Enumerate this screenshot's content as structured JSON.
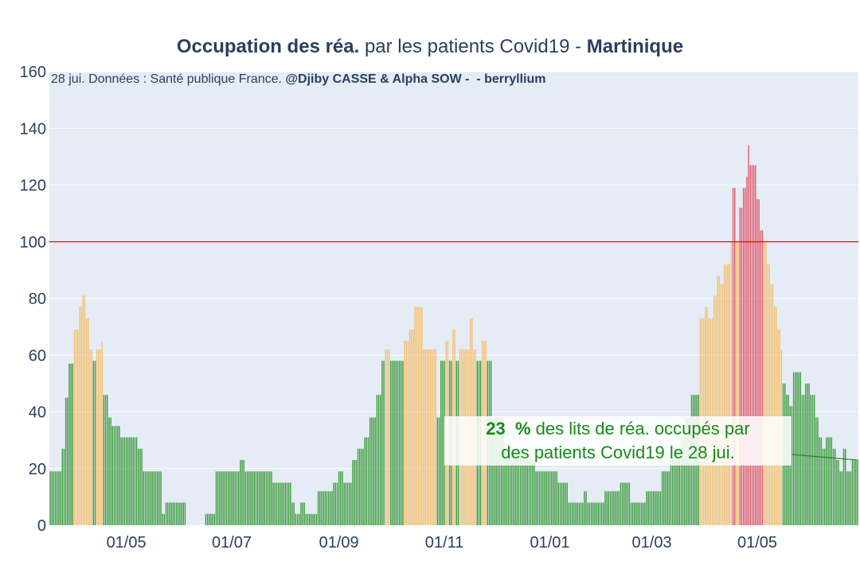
{
  "chart_data": {
    "type": "bar",
    "title": {
      "part1_bold": "Occupation des réa.",
      "part2": " par les patients Covid19 - ",
      "part3_bold": "Martinique"
    },
    "subtitle": {
      "text": "28 jui. Données : Santé publique France. ",
      "bold": "@Djiby CASSE & Alpha SOW -  - berryllium"
    },
    "ylim": [
      0,
      160
    ],
    "yticks": [
      "0",
      "20",
      "40",
      "60",
      "80",
      "100",
      "120",
      "140",
      "160"
    ],
    "xticks": [
      {
        "label": "01/05",
        "date": "2020-05-01"
      },
      {
        "label": "01/07",
        "date": "2020-07-01"
      },
      {
        "label": "01/09",
        "date": "2020-09-01"
      },
      {
        "label": "01/11",
        "date": "2020-11-01"
      },
      {
        "label": "01/01",
        "date": "2021-01-01"
      },
      {
        "label": "01/03",
        "date": "2021-03-01"
      },
      {
        "label": "01/05",
        "date": "2021-05-01"
      }
    ],
    "x_start": "2020-03-18",
    "x_end": "2021-06-28",
    "reference_line": {
      "value": 100,
      "color": "#ff0000"
    },
    "colors": {
      "low": "#3c9b3c",
      "mid": "#f5c06b",
      "high": "#e05a6a"
    },
    "thresholds": {
      "mid": 60,
      "high": 100
    },
    "series_keypoints": [
      [
        "2020-03-18",
        19
      ],
      [
        "2020-03-23",
        19
      ],
      [
        "2020-03-25",
        27
      ],
      [
        "2020-03-27",
        45
      ],
      [
        "2020-03-29",
        57
      ],
      [
        "2020-03-31",
        57
      ],
      [
        "2020-04-01",
        69
      ],
      [
        "2020-04-04",
        77
      ],
      [
        "2020-04-06",
        81
      ],
      [
        "2020-04-08",
        73
      ],
      [
        "2020-04-10",
        62
      ],
      [
        "2020-04-12",
        58
      ],
      [
        "2020-04-14",
        62
      ],
      [
        "2020-04-17",
        65
      ],
      [
        "2020-04-18",
        46
      ],
      [
        "2020-04-21",
        38
      ],
      [
        "2020-04-23",
        35
      ],
      [
        "2020-04-28",
        31
      ],
      [
        "2020-05-05",
        31
      ],
      [
        "2020-05-08",
        27
      ],
      [
        "2020-05-11",
        19
      ],
      [
        "2020-05-20",
        19
      ],
      [
        "2020-05-22",
        4
      ],
      [
        "2020-05-24",
        8
      ],
      [
        "2020-06-03",
        8
      ],
      [
        "2020-06-05",
        0
      ],
      [
        "2020-06-14",
        0
      ],
      [
        "2020-06-16",
        4
      ],
      [
        "2020-06-20",
        4
      ],
      [
        "2020-06-22",
        19
      ],
      [
        "2020-07-04",
        19
      ],
      [
        "2020-07-06",
        23
      ],
      [
        "2020-07-09",
        19
      ],
      [
        "2020-07-23",
        19
      ],
      [
        "2020-07-25",
        15
      ],
      [
        "2020-08-03",
        15
      ],
      [
        "2020-08-05",
        8
      ],
      [
        "2020-08-07",
        4
      ],
      [
        "2020-08-10",
        8
      ],
      [
        "2020-08-13",
        4
      ],
      [
        "2020-08-18",
        4
      ],
      [
        "2020-08-20",
        12
      ],
      [
        "2020-08-27",
        12
      ],
      [
        "2020-08-29",
        15
      ],
      [
        "2020-09-01",
        19
      ],
      [
        "2020-09-04",
        15
      ],
      [
        "2020-09-09",
        23
      ],
      [
        "2020-09-12",
        27
      ],
      [
        "2020-09-16",
        31
      ],
      [
        "2020-09-19",
        38
      ],
      [
        "2020-09-23",
        46
      ],
      [
        "2020-09-26",
        58
      ],
      [
        "2020-09-28",
        62
      ],
      [
        "2020-10-01",
        58
      ],
      [
        "2020-10-06",
        58
      ],
      [
        "2020-10-09",
        65
      ],
      [
        "2020-10-12",
        69
      ],
      [
        "2020-10-15",
        77
      ],
      [
        "2020-10-18",
        77
      ],
      [
        "2020-10-20",
        62
      ],
      [
        "2020-10-26",
        62
      ],
      [
        "2020-10-28",
        38
      ],
      [
        "2020-10-30",
        58
      ],
      [
        "2020-11-02",
        65
      ],
      [
        "2020-11-04",
        58
      ],
      [
        "2020-11-06",
        69
      ],
      [
        "2020-11-08",
        58
      ],
      [
        "2020-11-10",
        62
      ],
      [
        "2020-11-14",
        62
      ],
      [
        "2020-11-16",
        73
      ],
      [
        "2020-11-18",
        62
      ],
      [
        "2020-11-20",
        58
      ],
      [
        "2020-11-23",
        65
      ],
      [
        "2020-11-26",
        58
      ],
      [
        "2020-11-29",
        38
      ],
      [
        "2020-12-04",
        38
      ],
      [
        "2020-12-06",
        27
      ],
      [
        "2020-12-16",
        23
      ],
      [
        "2020-12-24",
        19
      ],
      [
        "2021-01-03",
        19
      ],
      [
        "2021-01-06",
        15
      ],
      [
        "2021-01-10",
        15
      ],
      [
        "2021-01-12",
        8
      ],
      [
        "2021-01-19",
        8
      ],
      [
        "2021-01-21",
        12
      ],
      [
        "2021-01-23",
        8
      ],
      [
        "2021-01-30",
        8
      ],
      [
        "2021-02-02",
        12
      ],
      [
        "2021-02-09",
        12
      ],
      [
        "2021-02-11",
        15
      ],
      [
        "2021-02-15",
        15
      ],
      [
        "2021-02-17",
        8
      ],
      [
        "2021-02-24",
        8
      ],
      [
        "2021-02-26",
        12
      ],
      [
        "2021-03-04",
        12
      ],
      [
        "2021-03-07",
        19
      ],
      [
        "2021-03-10",
        19
      ],
      [
        "2021-03-12",
        23
      ],
      [
        "2021-03-15",
        27
      ],
      [
        "2021-03-18",
        31
      ],
      [
        "2021-03-21",
        38
      ],
      [
        "2021-03-24",
        46
      ],
      [
        "2021-03-27",
        46
      ],
      [
        "2021-03-29",
        73
      ],
      [
        "2021-04-01",
        77
      ],
      [
        "2021-04-03",
        73
      ],
      [
        "2021-04-06",
        81
      ],
      [
        "2021-04-08",
        88
      ],
      [
        "2021-04-10",
        85
      ],
      [
        "2021-04-12",
        92
      ],
      [
        "2021-04-14",
        92
      ],
      [
        "2021-04-16",
        100
      ],
      [
        "2021-04-17",
        119
      ],
      [
        "2021-04-19",
        100
      ],
      [
        "2021-04-21",
        112
      ],
      [
        "2021-04-23",
        119
      ],
      [
        "2021-04-25",
        123
      ],
      [
        "2021-04-26",
        134
      ],
      [
        "2021-04-27",
        127
      ],
      [
        "2021-04-29",
        127
      ],
      [
        "2021-05-01",
        115
      ],
      [
        "2021-05-03",
        104
      ],
      [
        "2021-05-05",
        100
      ],
      [
        "2021-05-07",
        92
      ],
      [
        "2021-05-09",
        85
      ],
      [
        "2021-05-11",
        77
      ],
      [
        "2021-05-13",
        69
      ],
      [
        "2021-05-15",
        62
      ],
      [
        "2021-05-16",
        50
      ],
      [
        "2021-05-18",
        46
      ],
      [
        "2021-05-20",
        42
      ],
      [
        "2021-05-22",
        54
      ],
      [
        "2021-05-25",
        54
      ],
      [
        "2021-05-27",
        46
      ],
      [
        "2021-05-29",
        50
      ],
      [
        "2021-06-01",
        46
      ],
      [
        "2021-06-04",
        38
      ],
      [
        "2021-06-06",
        31
      ],
      [
        "2021-06-08",
        27
      ],
      [
        "2021-06-10",
        31
      ],
      [
        "2021-06-14",
        27
      ],
      [
        "2021-06-16",
        23
      ],
      [
        "2021-06-18",
        19
      ],
      [
        "2021-06-20",
        27
      ],
      [
        "2021-06-22",
        19
      ],
      [
        "2021-06-25",
        23
      ],
      [
        "2021-06-28",
        23
      ]
    ],
    "annotation": {
      "value_bold": "23  %",
      "line1": " des lits de réa. occupés par",
      "line2": "des patients Covid19 le 28 jui.",
      "arrow_to_date": "2021-06-28",
      "arrow_to_value": 23
    }
  }
}
